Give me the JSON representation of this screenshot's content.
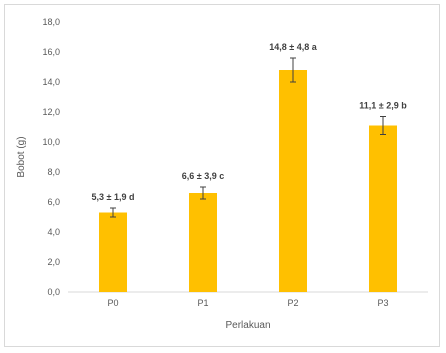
{
  "chart_data": {
    "type": "bar",
    "title": "",
    "xlabel": "Perlakuan",
    "ylabel": "Bobot (g)",
    "categories": [
      "P0",
      "P1",
      "P2",
      "P3"
    ],
    "values": [
      5.3,
      6.6,
      14.8,
      11.1
    ],
    "error_bars": [
      0.3,
      0.4,
      0.8,
      0.6
    ],
    "data_labels": [
      "5,3 ± 1,9 d",
      "6,6 ± 3,9 c",
      "14,8 ± 4,8 a",
      "11,1 ± 2,9 b"
    ],
    "ylim": [
      0,
      18
    ],
    "y_ticks": [
      "0,0",
      "2,0",
      "4,0",
      "6,0",
      "8,0",
      "10,0",
      "12,0",
      "14,0",
      "16,0",
      "18,0"
    ],
    "grid": false,
    "legend": "none",
    "bar_color": "#ffc000",
    "error_color": "#404040"
  }
}
